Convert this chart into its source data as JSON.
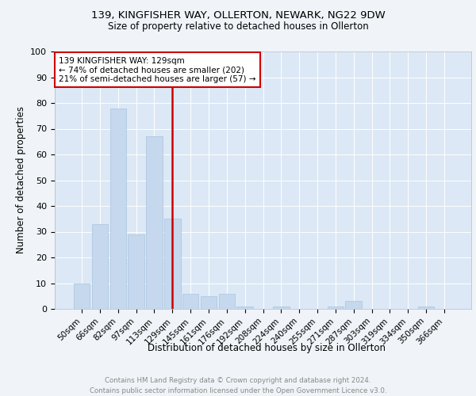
{
  "title1": "139, KINGFISHER WAY, OLLERTON, NEWARK, NG22 9DW",
  "title2": "Size of property relative to detached houses in Ollerton",
  "xlabel": "Distribution of detached houses by size in Ollerton",
  "ylabel": "Number of detached properties",
  "categories": [
    "50sqm",
    "66sqm",
    "82sqm",
    "97sqm",
    "113sqm",
    "129sqm",
    "145sqm",
    "161sqm",
    "176sqm",
    "192sqm",
    "208sqm",
    "224sqm",
    "240sqm",
    "255sqm",
    "271sqm",
    "287sqm",
    "303sqm",
    "319sqm",
    "334sqm",
    "350sqm",
    "366sqm"
  ],
  "values": [
    10,
    33,
    78,
    29,
    67,
    35,
    6,
    5,
    6,
    1,
    0,
    1,
    0,
    0,
    1,
    3,
    0,
    0,
    0,
    1,
    0
  ],
  "bar_color": "#c5d8ed",
  "bar_edge_color": "#a8c4e0",
  "vline_color": "#cc0000",
  "vline_index": 5,
  "annotation_text": "139 KINGFISHER WAY: 129sqm\n← 74% of detached houses are smaller (202)\n21% of semi-detached houses are larger (57) →",
  "annotation_box_color": "#ffffff",
  "annotation_box_edge": "#cc0000",
  "footer_text": "Contains HM Land Registry data © Crown copyright and database right 2024.\nContains public sector information licensed under the Open Government Licence v3.0.",
  "ylim": [
    0,
    100
  ],
  "plot_bg_color": "#dce8f5",
  "fig_bg_color": "#f0f4f8"
}
